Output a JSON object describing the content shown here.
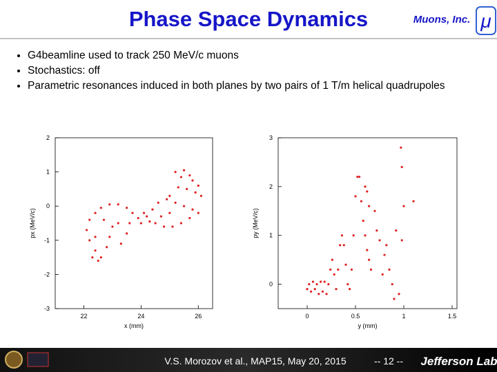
{
  "slide": {
    "title": "Phase Space Dynamics",
    "logo_text": "Muons, Inc.",
    "logo_symbol": "μ",
    "bullets": [
      "G4beamline used to track 250 MeV/c muons",
      "Stochastics: off",
      "Parametric resonances induced in both planes by two pairs of 1 T/m helical quadrupoles"
    ],
    "footer": {
      "citation": "V.S. Morozov et al., MAP15, May 20, 2015",
      "page": "-- 12 --",
      "lab": "Jefferson Lab"
    }
  },
  "chart_data": [
    {
      "type": "scatter",
      "xlabel": "x (mm)",
      "ylabel": "px (MeV/c)",
      "color": "#e02020",
      "xlim": [
        21,
        26.5
      ],
      "xticks": [
        22,
        24,
        26
      ],
      "ylim": [
        -3,
        2
      ],
      "yticks": [
        -3,
        -2,
        -1,
        0,
        1,
        2
      ],
      "x": [
        25.2,
        25.5,
        25.4,
        25.7,
        25.8,
        26.0,
        25.9,
        26.1,
        25.6,
        25.3,
        25.0,
        25.2,
        25.5,
        25.8,
        26.0,
        25.7,
        25.4,
        25.1,
        24.8,
        24.5,
        24.7,
        25.0,
        24.4,
        24.1,
        23.9,
        24.0,
        24.3,
        24.2,
        23.7,
        23.5,
        23.2,
        22.9,
        22.6,
        22.4,
        22.2,
        22.1,
        22.2,
        22.4,
        22.6,
        22.5,
        22.8,
        22.9,
        23.0,
        23.2,
        22.7,
        22.4,
        23.3,
        23.5,
        23.6,
        22.3,
        24.6,
        24.9
      ],
      "values": [
        1.0,
        1.05,
        0.85,
        0.9,
        0.75,
        0.6,
        0.4,
        0.3,
        0.5,
        0.55,
        0.3,
        0.1,
        0.0,
        -0.1,
        -0.2,
        -0.35,
        -0.5,
        -0.6,
        -0.6,
        -0.5,
        -0.3,
        -0.2,
        -0.1,
        -0.2,
        -0.35,
        -0.5,
        -0.45,
        -0.3,
        -0.2,
        -0.05,
        0.05,
        0.05,
        -0.05,
        -0.2,
        -0.4,
        -0.7,
        -1.0,
        -1.3,
        -1.5,
        -1.6,
        -1.2,
        -0.9,
        -0.6,
        -0.5,
        -0.4,
        -0.9,
        -1.1,
        -0.8,
        -0.5,
        -1.5,
        0.1,
        0.2
      ]
    },
    {
      "type": "scatter",
      "xlabel": "y (mm)",
      "ylabel": "py (MeV/c)",
      "color": "#e02020",
      "xlim": [
        -0.3,
        1.55
      ],
      "xticks": [
        0,
        0.5,
        1,
        1.5
      ],
      "ylim": [
        -0.5,
        3
      ],
      "yticks": [
        0,
        1,
        2,
        3
      ],
      "x": [
        0.0,
        0.02,
        0.04,
        0.06,
        0.08,
        0.1,
        0.12,
        0.14,
        0.16,
        0.18,
        0.2,
        0.22,
        0.24,
        0.26,
        0.28,
        0.3,
        0.32,
        0.34,
        0.36,
        0.38,
        0.4,
        0.42,
        0.44,
        0.46,
        0.48,
        0.5,
        0.52,
        0.54,
        0.56,
        0.58,
        0.6,
        0.62,
        0.64,
        0.66,
        0.6,
        0.62,
        0.64,
        0.7,
        0.72,
        0.75,
        0.8,
        0.85,
        0.88,
        0.9,
        0.95,
        0.97,
        0.98,
        1.0,
        0.98,
        0.78,
        1.1,
        0.92,
        0.82
      ],
      "values": [
        -0.1,
        0.0,
        -0.15,
        0.05,
        -0.1,
        0.0,
        -0.2,
        0.05,
        -0.15,
        0.05,
        -0.2,
        0.0,
        0.3,
        0.5,
        0.2,
        -0.1,
        0.3,
        0.8,
        1.0,
        0.8,
        0.4,
        0.0,
        -0.1,
        0.3,
        1.0,
        1.8,
        2.2,
        2.2,
        1.7,
        1.3,
        1.0,
        0.7,
        0.5,
        0.3,
        2.0,
        1.9,
        1.6,
        1.5,
        1.1,
        0.9,
        0.6,
        0.3,
        0.0,
        -0.3,
        -0.2,
        2.8,
        2.4,
        1.6,
        0.9,
        0.2,
        1.7,
        1.1,
        0.8
      ]
    }
  ]
}
